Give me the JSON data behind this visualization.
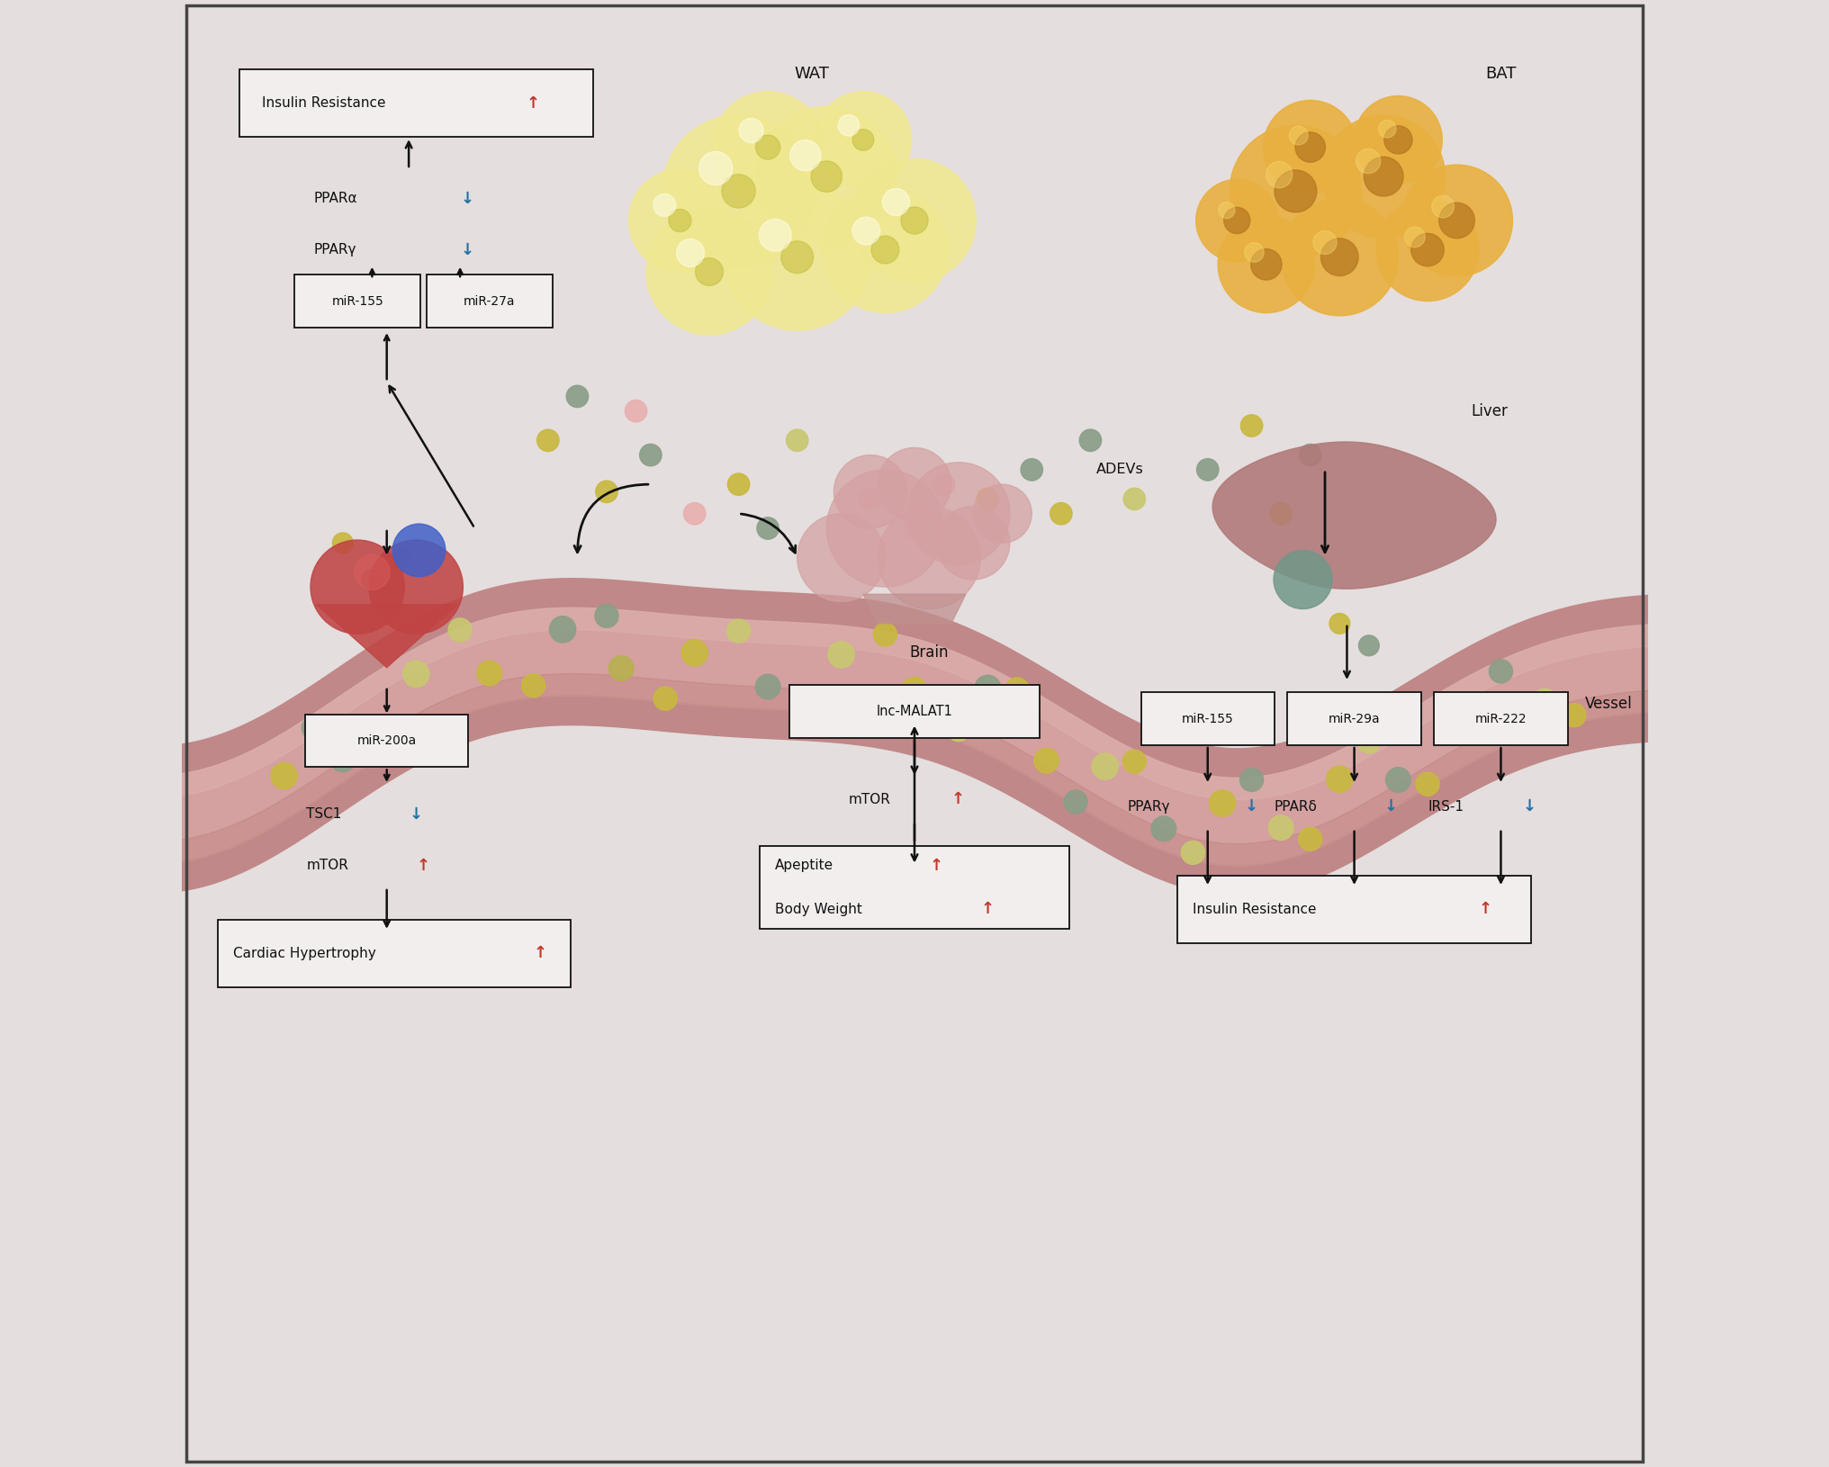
{
  "bg_color": "#e5dede",
  "box_bg": "#f2eeee",
  "box_edge": "#222222",
  "black": "#111111",
  "red": "#c0392b",
  "blue": "#2471a3",
  "figsize": [
    20.32,
    16.3
  ],
  "dpi": 100,
  "vessel_outer": "#c08888",
  "vessel_inner": "#d4a0a0",
  "wat_color": "#f5eeaa",
  "bat_color": "#e8b040",
  "bat_dark": "#b87820",
  "liver_color": "#b07878",
  "brain_color": "#d4a0a0",
  "dot_yellow": "#c8b840",
  "dot_gray": "#8a9e88",
  "dot_pink": "#e8b0b0",
  "dot_olive": "#a0a050",
  "WAT_label": "WAT",
  "BAT_label": "BAT",
  "ADEVs_label": "ADEVs",
  "Vessel_label": "Vessel",
  "Brain_label": "Brain",
  "Liver_label": "Liver"
}
